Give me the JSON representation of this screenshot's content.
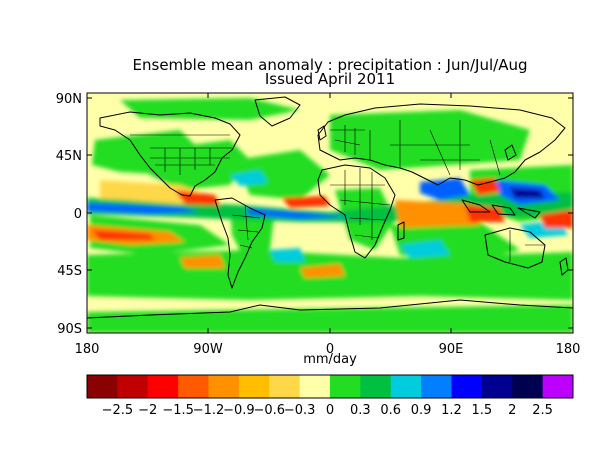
{
  "title_line1": "Ensemble mean anomaly : precipitation : Jun/Jul/Aug",
  "title_line2": "Issued April 2011",
  "lat_labels": [
    "90N",
    "45N",
    "0",
    "45S",
    "90S"
  ],
  "lon_labels": [
    "180",
    "90W",
    "0",
    "90E",
    "180"
  ],
  "unit_label": "mm/day",
  "colorbar": {
    "colors": [
      "#8b0000",
      "#c00000",
      "#ff0000",
      "#ff5a00",
      "#ff9000",
      "#ffbe00",
      "#ffd84a",
      "#ffffaa",
      "#22dd22",
      "#00c040",
      "#00ccdd",
      "#0080ff",
      "#0000ff",
      "#000090",
      "#000050",
      "#bb00ff"
    ],
    "tick_labels": [
      "-2.5",
      "-2",
      "-1.5",
      "-1.2",
      "-0.9",
      "-0.6",
      "-0.3",
      "0",
      "0.3",
      "0.6",
      "0.9",
      "1.2",
      "1.5",
      "2",
      "2.5"
    ]
  },
  "map_colors": {
    "background": "#ffffaa",
    "wet": "#22dd22",
    "wet2": "#00c040",
    "cyan": "#00ccdd",
    "blue": "#0060ff",
    "navy": "#000090",
    "dry1": "#ffd84a",
    "dry2": "#ff9000",
    "dry3": "#ff3000",
    "coast": "#000000"
  }
}
